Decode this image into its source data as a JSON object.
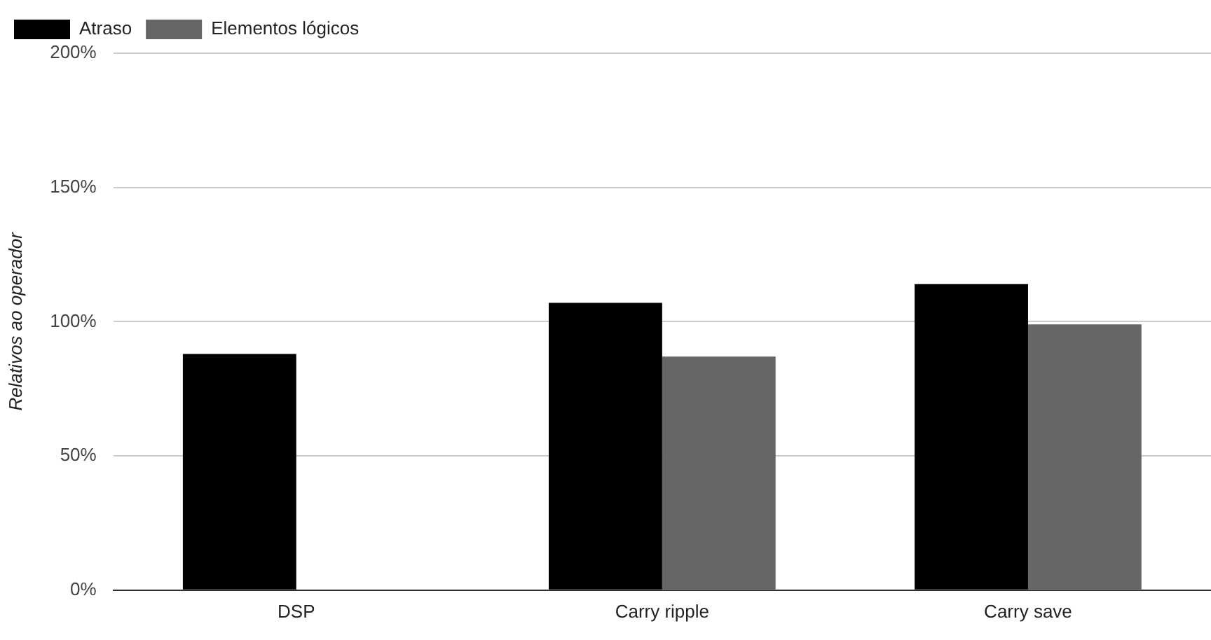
{
  "chart_data": {
    "type": "bar",
    "ylabel": "Relativos ao operador",
    "categories": [
      "DSP",
      "Carry ripple",
      "Carry save"
    ],
    "series": [
      {
        "name": "Atraso",
        "color": "#000000",
        "values": [
          88,
          107,
          114
        ]
      },
      {
        "name": "Elementos lógicos",
        "color": "#666666",
        "values": [
          null,
          87,
          99
        ]
      }
    ],
    "ylim": [
      0,
      200
    ],
    "yticks": [
      {
        "value": 0,
        "label": "0%"
      },
      {
        "value": 50,
        "label": "50%"
      },
      {
        "value": 100,
        "label": "100%"
      },
      {
        "value": 150,
        "label": "150%"
      },
      {
        "value": 200,
        "label": "200%"
      }
    ],
    "grid": "y",
    "legend": "top left"
  }
}
